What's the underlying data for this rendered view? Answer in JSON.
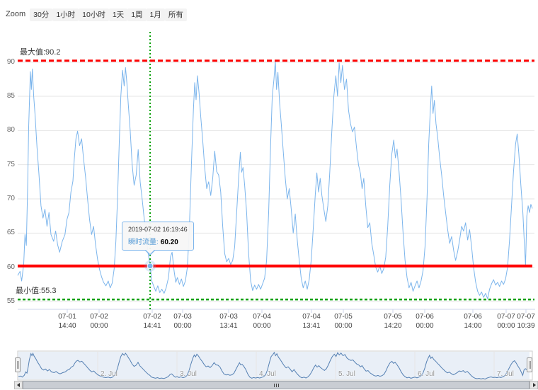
{
  "range_selector": {
    "zoom_label": "Zoom",
    "buttons": [
      "30分",
      "1小时",
      "10小时",
      "1天",
      "1周",
      "1月",
      "所有"
    ]
  },
  "tooltip": {
    "datetime": "2019-07-02 16:19:46",
    "series_label": "瞬时流量:",
    "value": "60.20",
    "point": {
      "hours": 39.8,
      "value": 60.2
    }
  },
  "plot_lines": {
    "max": {
      "label": "最大值:90.2",
      "value": 90.2,
      "style": "dashed"
    },
    "min": {
      "label": "最小值:55.3",
      "value": 55.3,
      "style": "dotted"
    },
    "current": {
      "value": 60.2,
      "style": "solid"
    }
  },
  "y_axis": {
    "ticks": [
      55,
      60,
      65,
      70,
      75,
      80,
      85,
      90
    ]
  },
  "x_axis": {
    "tick_labels": [
      {
        "date": "07-01",
        "time": "14:40"
      },
      {
        "date": "07-02",
        "time": "00:00"
      },
      {
        "date": "07-02",
        "time": "14:41"
      },
      {
        "date": "07-03",
        "time": "00:00"
      },
      {
        "date": "07-03",
        "time": "13:41"
      },
      {
        "date": "07-04",
        "time": "00:00"
      },
      {
        "date": "07-04",
        "time": "13:41"
      },
      {
        "date": "07-05",
        "time": "00:00"
      },
      {
        "date": "07-05",
        "time": "14:20"
      },
      {
        "date": "07-06",
        "time": "00:00"
      },
      {
        "date": "07-06",
        "time": "14:00"
      },
      {
        "date": "07-07",
        "time": "00:00"
      },
      {
        "date": "07-07",
        "time": "10:39"
      }
    ]
  },
  "navigator": {
    "day_labels": [
      "2. Jul",
      "3. Jul",
      "4. Jul",
      "5. Jul",
      "6. Jul",
      "7. Jul"
    ]
  },
  "colors": {
    "series": "#7cb5ec",
    "navigator_series": "#5580b3",
    "navigator_mask": "rgba(118,158,206,0.16)",
    "max_line": "#ff0000",
    "min_line": "#00a000",
    "current_line": "#ff0000",
    "crosshair": "#00a000",
    "grid": "#e6e6e6",
    "axis": "#ccd6eb"
  },
  "chart_data": {
    "type": "line",
    "title": "",
    "xlabel": "2019-07-01 00:00 to 2019-07-07 10:39",
    "ylabel": "",
    "ylim": [
      53.9,
      94.5
    ],
    "yticks": [
      55,
      60,
      65,
      70,
      75,
      80,
      85,
      90
    ],
    "legend": "none",
    "grid": "horizontal",
    "series": [
      {
        "name": "瞬时流量",
        "x_unit": "hours_since_2019-07-01_00:00",
        "points": [
          [
            0,
            58.8
          ],
          [
            0.7,
            59.4
          ],
          [
            1.2,
            58.0
          ],
          [
            1.8,
            60.5
          ],
          [
            2.2,
            64.8
          ],
          [
            2.6,
            63.2
          ],
          [
            3.0,
            72.0
          ],
          [
            3.3,
            80.5
          ],
          [
            3.8,
            88.6
          ],
          [
            4.1,
            86.0
          ],
          [
            4.4,
            89.0
          ],
          [
            4.8,
            85.0
          ],
          [
            5.2,
            82.5
          ],
          [
            5.8,
            77.5
          ],
          [
            6.4,
            73.5
          ],
          [
            7.0,
            69.0
          ],
          [
            7.6,
            67.2
          ],
          [
            8.2,
            68.5
          ],
          [
            8.8,
            66.0
          ],
          [
            9.4,
            68.0
          ],
          [
            10.0,
            64.8
          ],
          [
            10.8,
            63.8
          ],
          [
            11.4,
            65.3
          ],
          [
            12.0,
            63.3
          ],
          [
            12.6,
            62.2
          ],
          [
            13.4,
            63.8
          ],
          [
            14.2,
            64.8
          ],
          [
            14.8,
            67.0
          ],
          [
            15.4,
            68.0
          ],
          [
            16.0,
            71.0
          ],
          [
            16.6,
            72.6
          ],
          [
            17.0,
            75.8
          ],
          [
            17.5,
            78.8
          ],
          [
            18.0,
            79.9
          ],
          [
            18.6,
            77.8
          ],
          [
            19.2,
            78.8
          ],
          [
            19.8,
            75.8
          ],
          [
            20.4,
            73.2
          ],
          [
            21.0,
            70.0
          ],
          [
            21.6,
            67.0
          ],
          [
            22.2,
            64.8
          ],
          [
            22.8,
            66.0
          ],
          [
            23.4,
            63.3
          ],
          [
            24.0,
            61.2
          ],
          [
            24.6,
            59.7
          ],
          [
            25.2,
            58.6
          ],
          [
            25.8,
            57.8
          ],
          [
            26.5,
            57.3
          ],
          [
            27.2,
            58.0
          ],
          [
            27.8,
            57.0
          ],
          [
            28.4,
            57.7
          ],
          [
            29.0,
            59.8
          ],
          [
            29.5,
            63.8
          ],
          [
            30.0,
            70.0
          ],
          [
            30.5,
            78.0
          ],
          [
            31.0,
            85.0
          ],
          [
            31.5,
            88.8
          ],
          [
            32.0,
            86.5
          ],
          [
            32.4,
            89.2
          ],
          [
            32.8,
            87.0
          ],
          [
            33.2,
            84.0
          ],
          [
            33.8,
            80.0
          ],
          [
            34.4,
            75.0
          ],
          [
            35.0,
            72.0
          ],
          [
            35.6,
            73.5
          ],
          [
            36.2,
            77.2
          ],
          [
            36.8,
            72.5
          ],
          [
            37.4,
            70.0
          ],
          [
            38.0,
            67.2
          ],
          [
            38.6,
            64.5
          ],
          [
            39.2,
            62.0
          ],
          [
            39.8,
            60.2
          ],
          [
            40.3,
            58.0
          ],
          [
            40.9,
            57.2
          ],
          [
            41.5,
            56.5
          ],
          [
            42.1,
            57.3
          ],
          [
            42.7,
            56.3
          ],
          [
            43.3,
            56.8
          ],
          [
            44.0,
            56.2
          ],
          [
            44.6,
            57.0
          ],
          [
            45.3,
            58.5
          ],
          [
            45.9,
            61.5
          ],
          [
            46.4,
            62.2
          ],
          [
            47.0,
            59.5
          ],
          [
            47.5,
            57.8
          ],
          [
            48.0,
            58.5
          ],
          [
            48.6,
            57.5
          ],
          [
            49.2,
            58.3
          ],
          [
            49.8,
            57.2
          ],
          [
            50.4,
            58.0
          ],
          [
            51.0,
            60.0
          ],
          [
            51.6,
            66.0
          ],
          [
            52.2,
            75.0
          ],
          [
            52.8,
            83.0
          ],
          [
            53.2,
            87.0
          ],
          [
            53.6,
            84.5
          ],
          [
            54.0,
            88.0
          ],
          [
            54.5,
            85.5
          ],
          [
            55.0,
            82.0
          ],
          [
            55.6,
            78.5
          ],
          [
            56.2,
            74.5
          ],
          [
            56.8,
            71.5
          ],
          [
            57.4,
            72.5
          ],
          [
            58.0,
            70.5
          ],
          [
            58.6,
            73.0
          ],
          [
            59.2,
            77.0
          ],
          [
            59.8,
            74.0
          ],
          [
            60.4,
            73.5
          ],
          [
            61.0,
            71.0
          ],
          [
            61.6,
            66.0
          ],
          [
            62.2,
            62.0
          ],
          [
            62.8,
            60.8
          ],
          [
            63.4,
            61.3
          ],
          [
            64.0,
            60.4
          ],
          [
            64.6,
            61.0
          ],
          [
            65.2,
            63.0
          ],
          [
            65.8,
            68.0
          ],
          [
            66.4,
            73.0
          ],
          [
            66.9,
            76.8
          ],
          [
            67.3,
            73.9
          ],
          [
            67.7,
            74.6
          ],
          [
            68.2,
            72.0
          ],
          [
            68.8,
            68.0
          ],
          [
            69.4,
            62.0
          ],
          [
            70.0,
            58.0
          ],
          [
            70.6,
            56.6
          ],
          [
            71.2,
            57.4
          ],
          [
            71.8,
            56.8
          ],
          [
            72.4,
            57.5
          ],
          [
            73.0,
            56.8
          ],
          [
            73.6,
            57.6
          ],
          [
            74.2,
            58.4
          ],
          [
            74.8,
            61.0
          ],
          [
            75.4,
            68.0
          ],
          [
            76.0,
            78.0
          ],
          [
            76.5,
            85.0
          ],
          [
            77.0,
            87.5
          ],
          [
            77.4,
            90.2
          ],
          [
            77.8,
            86.0
          ],
          [
            78.2,
            88.5
          ],
          [
            78.7,
            84.0
          ],
          [
            79.2,
            81.0
          ],
          [
            79.8,
            77.0
          ],
          [
            80.4,
            73.0
          ],
          [
            81.0,
            70.0
          ],
          [
            81.6,
            71.5
          ],
          [
            82.2,
            68.5
          ],
          [
            82.8,
            65.0
          ],
          [
            83.4,
            67.8
          ],
          [
            84.0,
            64.0
          ],
          [
            84.6,
            61.0
          ],
          [
            85.2,
            58.4
          ],
          [
            85.8,
            57.0
          ],
          [
            86.4,
            58.0
          ],
          [
            87.0,
            56.8
          ],
          [
            87.6,
            58.2
          ],
          [
            88.2,
            61.0
          ],
          [
            88.8,
            65.5
          ],
          [
            89.4,
            70.5
          ],
          [
            89.9,
            73.8
          ],
          [
            90.4,
            71.0
          ],
          [
            90.9,
            73.0
          ],
          [
            91.4,
            70.5
          ],
          [
            92.0,
            68.5
          ],
          [
            92.6,
            66.7
          ],
          [
            93.2,
            69.0
          ],
          [
            93.8,
            74.0
          ],
          [
            94.4,
            80.0
          ],
          [
            95.0,
            85.0
          ],
          [
            95.6,
            88.0
          ],
          [
            96.1,
            85.0
          ],
          [
            96.6,
            89.9
          ],
          [
            97.1,
            87.0
          ],
          [
            97.6,
            89.5
          ],
          [
            98.2,
            86.0
          ],
          [
            98.8,
            87.5
          ],
          [
            99.4,
            83.0
          ],
          [
            100.0,
            81.0
          ],
          [
            100.6,
            79.8
          ],
          [
            101.2,
            80.5
          ],
          [
            101.8,
            77.5
          ],
          [
            102.4,
            75.0
          ],
          [
            103.0,
            73.7
          ],
          [
            103.5,
            71.5
          ],
          [
            104.0,
            73.0
          ],
          [
            104.6,
            69.0
          ],
          [
            105.2,
            65.8
          ],
          [
            105.8,
            66.5
          ],
          [
            106.4,
            63.5
          ],
          [
            107.0,
            61.8
          ],
          [
            107.6,
            60.0
          ],
          [
            108.2,
            59.3
          ],
          [
            108.8,
            60.2
          ],
          [
            109.4,
            59.1
          ],
          [
            110.0,
            59.8
          ],
          [
            110.6,
            61.5
          ],
          [
            111.2,
            66.0
          ],
          [
            111.8,
            72.0
          ],
          [
            112.4,
            76.5
          ],
          [
            113.0,
            78.6
          ],
          [
            113.5,
            76.0
          ],
          [
            114.0,
            77.3
          ],
          [
            114.6,
            74.0
          ],
          [
            115.2,
            70.0
          ],
          [
            115.8,
            65.0
          ],
          [
            116.4,
            61.0
          ],
          [
            117.0,
            58.5
          ],
          [
            117.6,
            57.0
          ],
          [
            118.2,
            57.8
          ],
          [
            118.8,
            56.5
          ],
          [
            119.4,
            57.3
          ],
          [
            120.0,
            58.0
          ],
          [
            120.6,
            57.0
          ],
          [
            121.2,
            58.0
          ],
          [
            121.8,
            59.5
          ],
          [
            122.4,
            63.0
          ],
          [
            123.0,
            70.0
          ],
          [
            123.5,
            78.0
          ],
          [
            124.0,
            83.0
          ],
          [
            124.4,
            86.5
          ],
          [
            124.8,
            82.5
          ],
          [
            125.2,
            84.4
          ],
          [
            125.7,
            81.0
          ],
          [
            126.2,
            79.0
          ],
          [
            126.8,
            76.0
          ],
          [
            127.4,
            73.5
          ],
          [
            128.0,
            70.5
          ],
          [
            128.6,
            68.0
          ],
          [
            129.2,
            65.5
          ],
          [
            129.8,
            63.5
          ],
          [
            130.4,
            64.5
          ],
          [
            131.0,
            62.5
          ],
          [
            131.6,
            61.0
          ],
          [
            132.2,
            62.3
          ],
          [
            132.8,
            64.0
          ],
          [
            133.4,
            66.0
          ],
          [
            134.0,
            65.3
          ],
          [
            134.6,
            66.5
          ],
          [
            135.2,
            64.0
          ],
          [
            135.8,
            65.5
          ],
          [
            136.4,
            63.0
          ],
          [
            137.0,
            60.0
          ],
          [
            137.6,
            57.9
          ],
          [
            138.2,
            56.5
          ],
          [
            138.8,
            55.9
          ],
          [
            139.4,
            56.4
          ],
          [
            140.0,
            55.6
          ],
          [
            140.6,
            56.2
          ],
          [
            141.2,
            55.4
          ],
          [
            141.8,
            56.8
          ],
          [
            142.4,
            57.6
          ],
          [
            143.0,
            58.2
          ],
          [
            143.6,
            57.4
          ],
          [
            144.2,
            57.8
          ],
          [
            144.8,
            57.2
          ],
          [
            145.4,
            58.0
          ],
          [
            146.0,
            57.5
          ],
          [
            146.6,
            58.3
          ],
          [
            147.2,
            60.0
          ],
          [
            147.8,
            64.0
          ],
          [
            148.4,
            69.0
          ],
          [
            149.0,
            74.0
          ],
          [
            149.6,
            78.0
          ],
          [
            150.1,
            79.5
          ],
          [
            150.6,
            76.5
          ],
          [
            151.2,
            72.0
          ],
          [
            151.8,
            68.0
          ],
          [
            152.2,
            64.0
          ],
          [
            152.6,
            60.3
          ],
          [
            153.0,
            67.5
          ],
          [
            153.4,
            69.0
          ],
          [
            153.8,
            68.0
          ],
          [
            154.2,
            69.2
          ],
          [
            154.65,
            68.6
          ]
        ]
      }
    ]
  }
}
